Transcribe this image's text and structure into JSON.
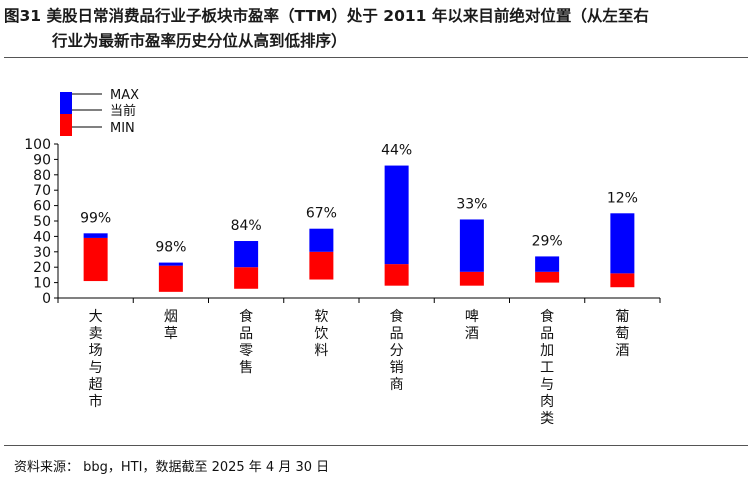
{
  "title_line1": "图31 美股日常消费品行业子板块市盈率（TTM）处于 2011 年以来目前绝对位置（从左至右",
  "title_line2": "行业为最新市盈率历史分位从高到低排序）",
  "source": "资料来源： bbg，HTI，数据截至 2025 年 4 月 30 日",
  "chart_data": {
    "type": "bar",
    "stacked_range": true,
    "title": "",
    "xlabel": "",
    "ylabel": "",
    "ylim": [
      0,
      100
    ],
    "yticks": [
      0,
      10,
      20,
      30,
      40,
      50,
      60,
      70,
      80,
      90,
      100
    ],
    "legend": {
      "placement": "top-left",
      "entries": [
        {
          "name": "MAX",
          "color": "#0000ff"
        },
        {
          "name": "当前",
          "color": "#ff0000"
        },
        {
          "name": "MIN",
          "color": "#ff0000"
        }
      ]
    },
    "categories": [
      "大卖场与超市",
      "烟草",
      "食品零售",
      "软饮料",
      "食品分销商",
      "啤酒",
      "食品加工与肉类",
      "葡萄酒"
    ],
    "series": [
      {
        "name": "MIN",
        "values": [
          11,
          4,
          6,
          12,
          8,
          8,
          10,
          7
        ]
      },
      {
        "name": "当前",
        "values": [
          39,
          21,
          20,
          30,
          22,
          17,
          17,
          16
        ]
      },
      {
        "name": "MAX",
        "values": [
          42,
          23,
          37,
          45,
          86,
          51,
          27,
          55
        ]
      }
    ],
    "data_labels": [
      "99%",
      "98%",
      "84%",
      "67%",
      "44%",
      "33%",
      "29%",
      "12%"
    ]
  }
}
